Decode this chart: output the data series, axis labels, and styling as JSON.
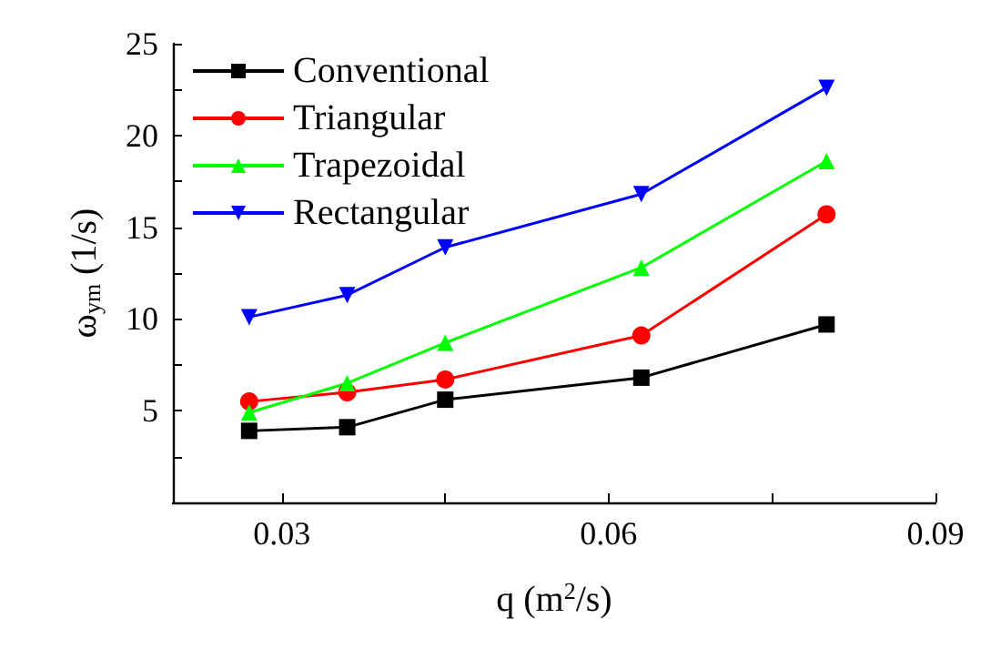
{
  "chart_data": {
    "type": "line",
    "xlabel": "q (m$^{2}$/s)",
    "ylabel": "ω$_{ym}$ (1/s)",
    "x": [
      0.027,
      0.036,
      0.045,
      0.063,
      0.08
    ],
    "series": [
      {
        "name": "Conventional",
        "color": "#000000",
        "marker": "square",
        "values": [
          3.9,
          4.1,
          5.6,
          6.8,
          9.7
        ]
      },
      {
        "name": "Triangular",
        "color": "#ff0000",
        "marker": "circle",
        "values": [
          5.5,
          6.0,
          6.7,
          9.1,
          15.7
        ]
      },
      {
        "name": "Trapezoidal",
        "color": "#00ff00",
        "marker": "triangle",
        "values": [
          4.9,
          6.5,
          8.7,
          12.8,
          18.6
        ]
      },
      {
        "name": "Rectangular",
        "color": "#0000ff",
        "marker": "triangle-down",
        "values": [
          10.1,
          11.3,
          13.9,
          16.8,
          22.6
        ]
      }
    ],
    "xlim": [
      0.02,
      0.09
    ],
    "xticks": [
      0.03,
      {
        "value": 0.045,
        "label": null
      },
      0.06,
      {
        "value": 0.075,
        "label": null
      },
      0.09
    ],
    "ylim": [
      0,
      25
    ],
    "yticks": [
      {
        "value": 2.5,
        "label": null
      },
      5,
      {
        "value": 7.5,
        "label": null
      },
      10,
      {
        "value": 12.5,
        "label": null
      },
      15,
      {
        "value": 17.5,
        "label": null
      },
      20,
      {
        "value": 22.5,
        "label": null
      },
      25
    ],
    "legend": "top left",
    "grid": false,
    "line_style": "solid"
  }
}
